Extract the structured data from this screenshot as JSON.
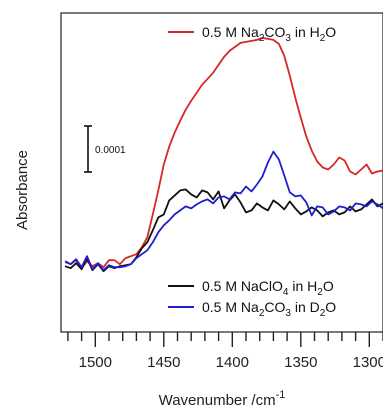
{
  "chart_data": {
    "type": "line",
    "xlabel": "Wavenumber /cm",
    "xlabel_sup": "-1",
    "ylabel": "Absorbance",
    "xlim": [
      1525,
      1290
    ],
    "x_reversed": true,
    "ylim": [
      -6e-05,
      0.00026
    ],
    "x_ticks_major": [
      1500,
      1450,
      1400,
      1350,
      1300
    ],
    "x_tick_labels": [
      "1500",
      "1450",
      "1400",
      "1350",
      "1300"
    ],
    "scale_bar": {
      "label": "0.0001",
      "value": 0.0001
    },
    "legend_top": [
      {
        "series": 0,
        "prefix": "0.5 M Na",
        "sub1": "2",
        "mid": "CO",
        "sub2": "3",
        "suffix": " in H",
        "sub3": "2",
        "end": "O"
      }
    ],
    "legend_bottom": [
      {
        "series": 1,
        "prefix": "0.5 M NaClO",
        "sub1": "4",
        "mid": " in H",
        "sub2": "2",
        "suffix": "O"
      },
      {
        "series": 2,
        "prefix": "0.5 M Na",
        "sub1": "2",
        "mid": "CO",
        "sub2": "3",
        "suffix": " in D",
        "sub3": "2",
        "end": "O"
      }
    ],
    "series": [
      {
        "color": "#d62728",
        "x": [
          1522,
          1518,
          1514,
          1510,
          1506,
          1502,
          1498,
          1494,
          1490,
          1486,
          1482,
          1478,
          1474,
          1470,
          1466,
          1462,
          1458,
          1454,
          1450,
          1446,
          1442,
          1438,
          1434,
          1430,
          1426,
          1422,
          1418,
          1414,
          1410,
          1406,
          1402,
          1398,
          1394,
          1390,
          1386,
          1382,
          1378,
          1374,
          1370,
          1366,
          1362,
          1358,
          1354,
          1350,
          1346,
          1342,
          1338,
          1334,
          1330,
          1326,
          1322,
          1318,
          1314,
          1310,
          1306,
          1302,
          1298,
          1294,
          1290
        ],
        "y": [
          1e-05,
          8e-06,
          1.2e-05,
          4e-06,
          1.1e-05,
          6e-06,
          9e-06,
          5e-06,
          1.2e-05,
          1.2e-05,
          8e-06,
          1.4e-05,
          1.6e-05,
          1.8e-05,
          2.5e-05,
          3.5e-05,
          5.8e-05,
          8.2e-05,
          0.000108,
          0.000126,
          0.00014,
          0.000152,
          0.000163,
          0.000172,
          0.00018,
          0.000188,
          0.000194,
          0.0002,
          0.000208,
          0.000216,
          0.000222,
          0.000226,
          0.00023,
          0.000231,
          0.000232,
          0.000233,
          0.000235,
          0.000234,
          0.000233,
          0.000229,
          0.000217,
          0.000197,
          0.000175,
          0.000155,
          0.000136,
          0.000122,
          0.000111,
          0.000105,
          0.000103,
          0.000108,
          0.000115,
          0.000112,
          0.000101,
          9.8e-05,
          0.000103,
          0.000108,
          9.9e-05,
          0.000101,
          0.000102
        ]
      },
      {
        "color": "#111111",
        "x": [
          1522,
          1518,
          1514,
          1510,
          1506,
          1502,
          1498,
          1494,
          1490,
          1486,
          1482,
          1478,
          1474,
          1470,
          1466,
          1462,
          1458,
          1454,
          1450,
          1446,
          1442,
          1438,
          1434,
          1430,
          1426,
          1422,
          1418,
          1414,
          1410,
          1406,
          1402,
          1398,
          1394,
          1390,
          1386,
          1382,
          1378,
          1374,
          1370,
          1366,
          1362,
          1358,
          1354,
          1350,
          1346,
          1342,
          1338,
          1334,
          1330,
          1326,
          1322,
          1318,
          1314,
          1310,
          1306,
          1302,
          1298,
          1294,
          1290
        ],
        "y": [
          6e-06,
          4e-06,
          9e-06,
          3e-06,
          1.4e-05,
          2e-06,
          8e-06,
          1e-06,
          6e-06,
          4e-06,
          6e-06,
          7e-06,
          8e-06,
          1.5e-05,
          2.4e-05,
          3e-05,
          4.2e-05,
          5.5e-05,
          5.8e-05,
          7.2e-05,
          7.7e-05,
          8.2e-05,
          8.3e-05,
          7.8e-05,
          7.5e-05,
          8.2e-05,
          8e-05,
          7.3e-05,
          8.1e-05,
          6.4e-05,
          7.2e-05,
          7.8e-05,
          7e-05,
          6e-05,
          6.2e-05,
          6.9e-05,
          6.5e-05,
          6.2e-05,
          7.2e-05,
          6.8e-05,
          6.3e-05,
          7.1e-05,
          6.4e-05,
          5.8e-05,
          6.1e-05,
          6.5e-05,
          6.2e-05,
          5.6e-05,
          6e-05,
          6.2e-05,
          5.8e-05,
          6e-05,
          6.6e-05,
          6.1e-05,
          6.3e-05,
          6.8e-05,
          7.3e-05,
          6.6e-05,
          6.9e-05
        ]
      },
      {
        "color": "#1f1fcf",
        "x": [
          1522,
          1518,
          1514,
          1510,
          1506,
          1502,
          1498,
          1494,
          1490,
          1486,
          1482,
          1478,
          1474,
          1470,
          1466,
          1462,
          1458,
          1454,
          1450,
          1446,
          1442,
          1438,
          1434,
          1430,
          1426,
          1422,
          1418,
          1414,
          1410,
          1406,
          1402,
          1398,
          1394,
          1390,
          1386,
          1382,
          1378,
          1374,
          1370,
          1366,
          1362,
          1358,
          1354,
          1350,
          1346,
          1342,
          1338,
          1334,
          1330,
          1326,
          1322,
          1318,
          1314,
          1310,
          1306,
          1302,
          1298,
          1294,
          1290
        ],
        "y": [
          1.1e-05,
          8e-06,
          1.3e-05,
          5e-06,
          1.6e-05,
          3e-06,
          9e-06,
          2e-06,
          7e-06,
          5e-06,
          5e-06,
          6e-06,
          8e-06,
          1.4e-05,
          1.8e-05,
          2.2e-05,
          3e-05,
          4e-05,
          4.7e-05,
          5.2e-05,
          5.8e-05,
          6.2e-05,
          6.6e-05,
          6.4e-05,
          6.8e-05,
          7.1e-05,
          7.3e-05,
          6.9e-05,
          7.5e-05,
          7.6e-05,
          7.3e-05,
          8e-05,
          7.9e-05,
          8.6e-05,
          8.1e-05,
          8.8e-05,
          9.6e-05,
          0.00011,
          0.000121,
          0.000113,
          9.7e-05,
          8e-05,
          7.6e-05,
          7.7e-05,
          7e-05,
          5.7e-05,
          6.6e-05,
          6.5e-05,
          5.8e-05,
          6.1e-05,
          6.6e-05,
          6.5e-05,
          6.2e-05,
          6.9e-05,
          6.8e-05,
          6.6e-05,
          7.1e-05,
          6.8e-05,
          6.4e-05
        ]
      }
    ]
  }
}
